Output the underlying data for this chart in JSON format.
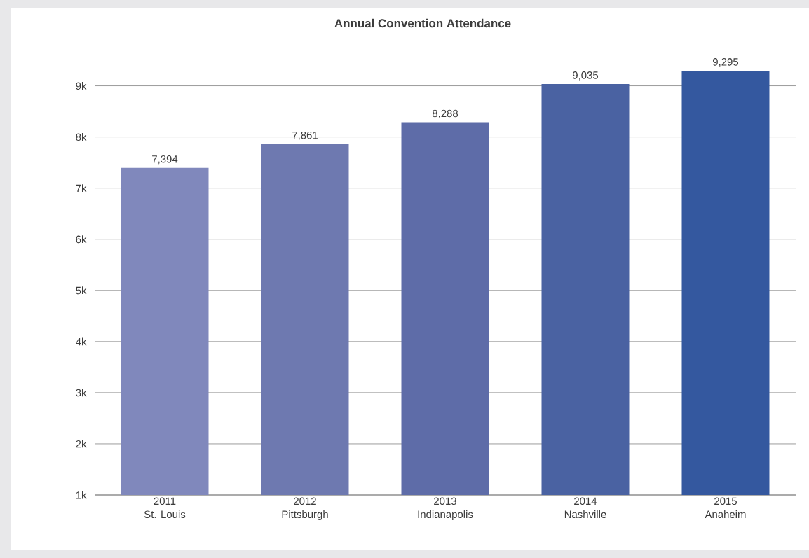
{
  "chart_data": {
    "type": "bar",
    "title": "Annual Convention Attendance",
    "categories": [
      "2011\nSt. Louis",
      "2012\nPittsburgh",
      "2013\nIndianapolis",
      "2014\nNashville",
      "2015\nAnaheim"
    ],
    "values": [
      7394,
      7861,
      8288,
      9035,
      9295
    ],
    "colors": [
      "#8088bc",
      "#6e79b0",
      "#5e6ca8",
      "#4a62a2",
      "#34589f"
    ],
    "ylim": [
      1000,
      9295
    ],
    "yticks": [
      {
        "value": 1000,
        "label": "1k"
      },
      {
        "value": 2000,
        "label": "2k"
      },
      {
        "value": 3000,
        "label": "3k"
      },
      {
        "value": 4000,
        "label": "4k"
      },
      {
        "value": 5000,
        "label": "5k"
      },
      {
        "value": 6000,
        "label": "6k"
      },
      {
        "value": 7000,
        "label": "7k"
      },
      {
        "value": 8000,
        "label": "8k"
      },
      {
        "value": 9000,
        "label": "9k"
      }
    ],
    "value_labels": [
      "7,394",
      "7,861",
      "8,288",
      "9,035",
      "9,295"
    ],
    "grid": "y"
  }
}
